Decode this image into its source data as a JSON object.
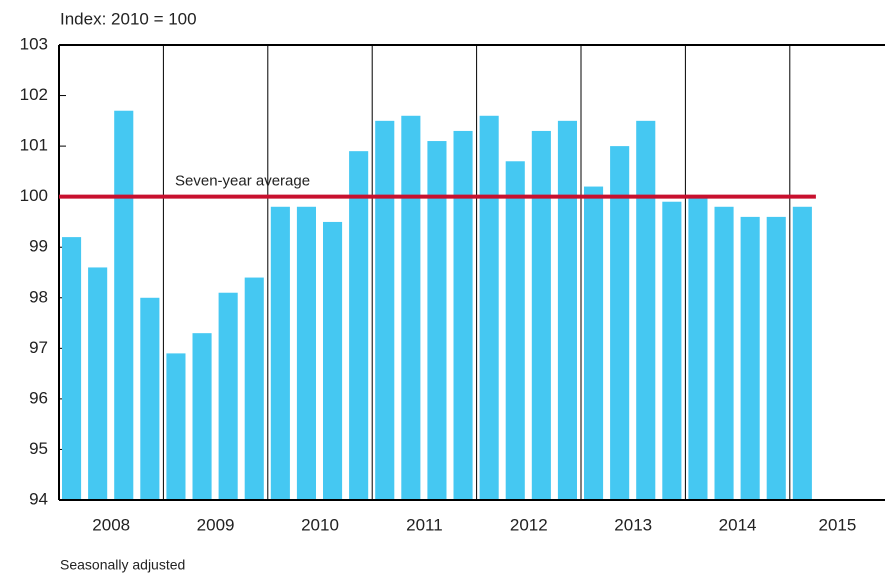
{
  "chart_data": {
    "type": "bar",
    "title": "Index: 2010 = 100",
    "footnote": "Seasonally adjusted",
    "year_labels": [
      "2008",
      "2009",
      "2010",
      "2011",
      "2012",
      "2013",
      "2014",
      "2015"
    ],
    "values": [
      99.2,
      98.6,
      101.7,
      98.0,
      96.9,
      97.3,
      98.1,
      98.4,
      99.8,
      99.8,
      99.5,
      100.9,
      101.5,
      101.6,
      101.1,
      101.3,
      101.6,
      100.7,
      101.3,
      101.5,
      100.2,
      101.0,
      101.5,
      99.9,
      100.0,
      99.8,
      99.6,
      99.6,
      99.8
    ],
    "color": "#45c8f2",
    "average": {
      "label": "Seven-year average",
      "value": 100,
      "color": "#c8102e"
    },
    "ylim": [
      94,
      103
    ],
    "yticks": [
      94,
      95,
      96,
      97,
      98,
      99,
      100,
      101,
      102,
      103
    ]
  }
}
